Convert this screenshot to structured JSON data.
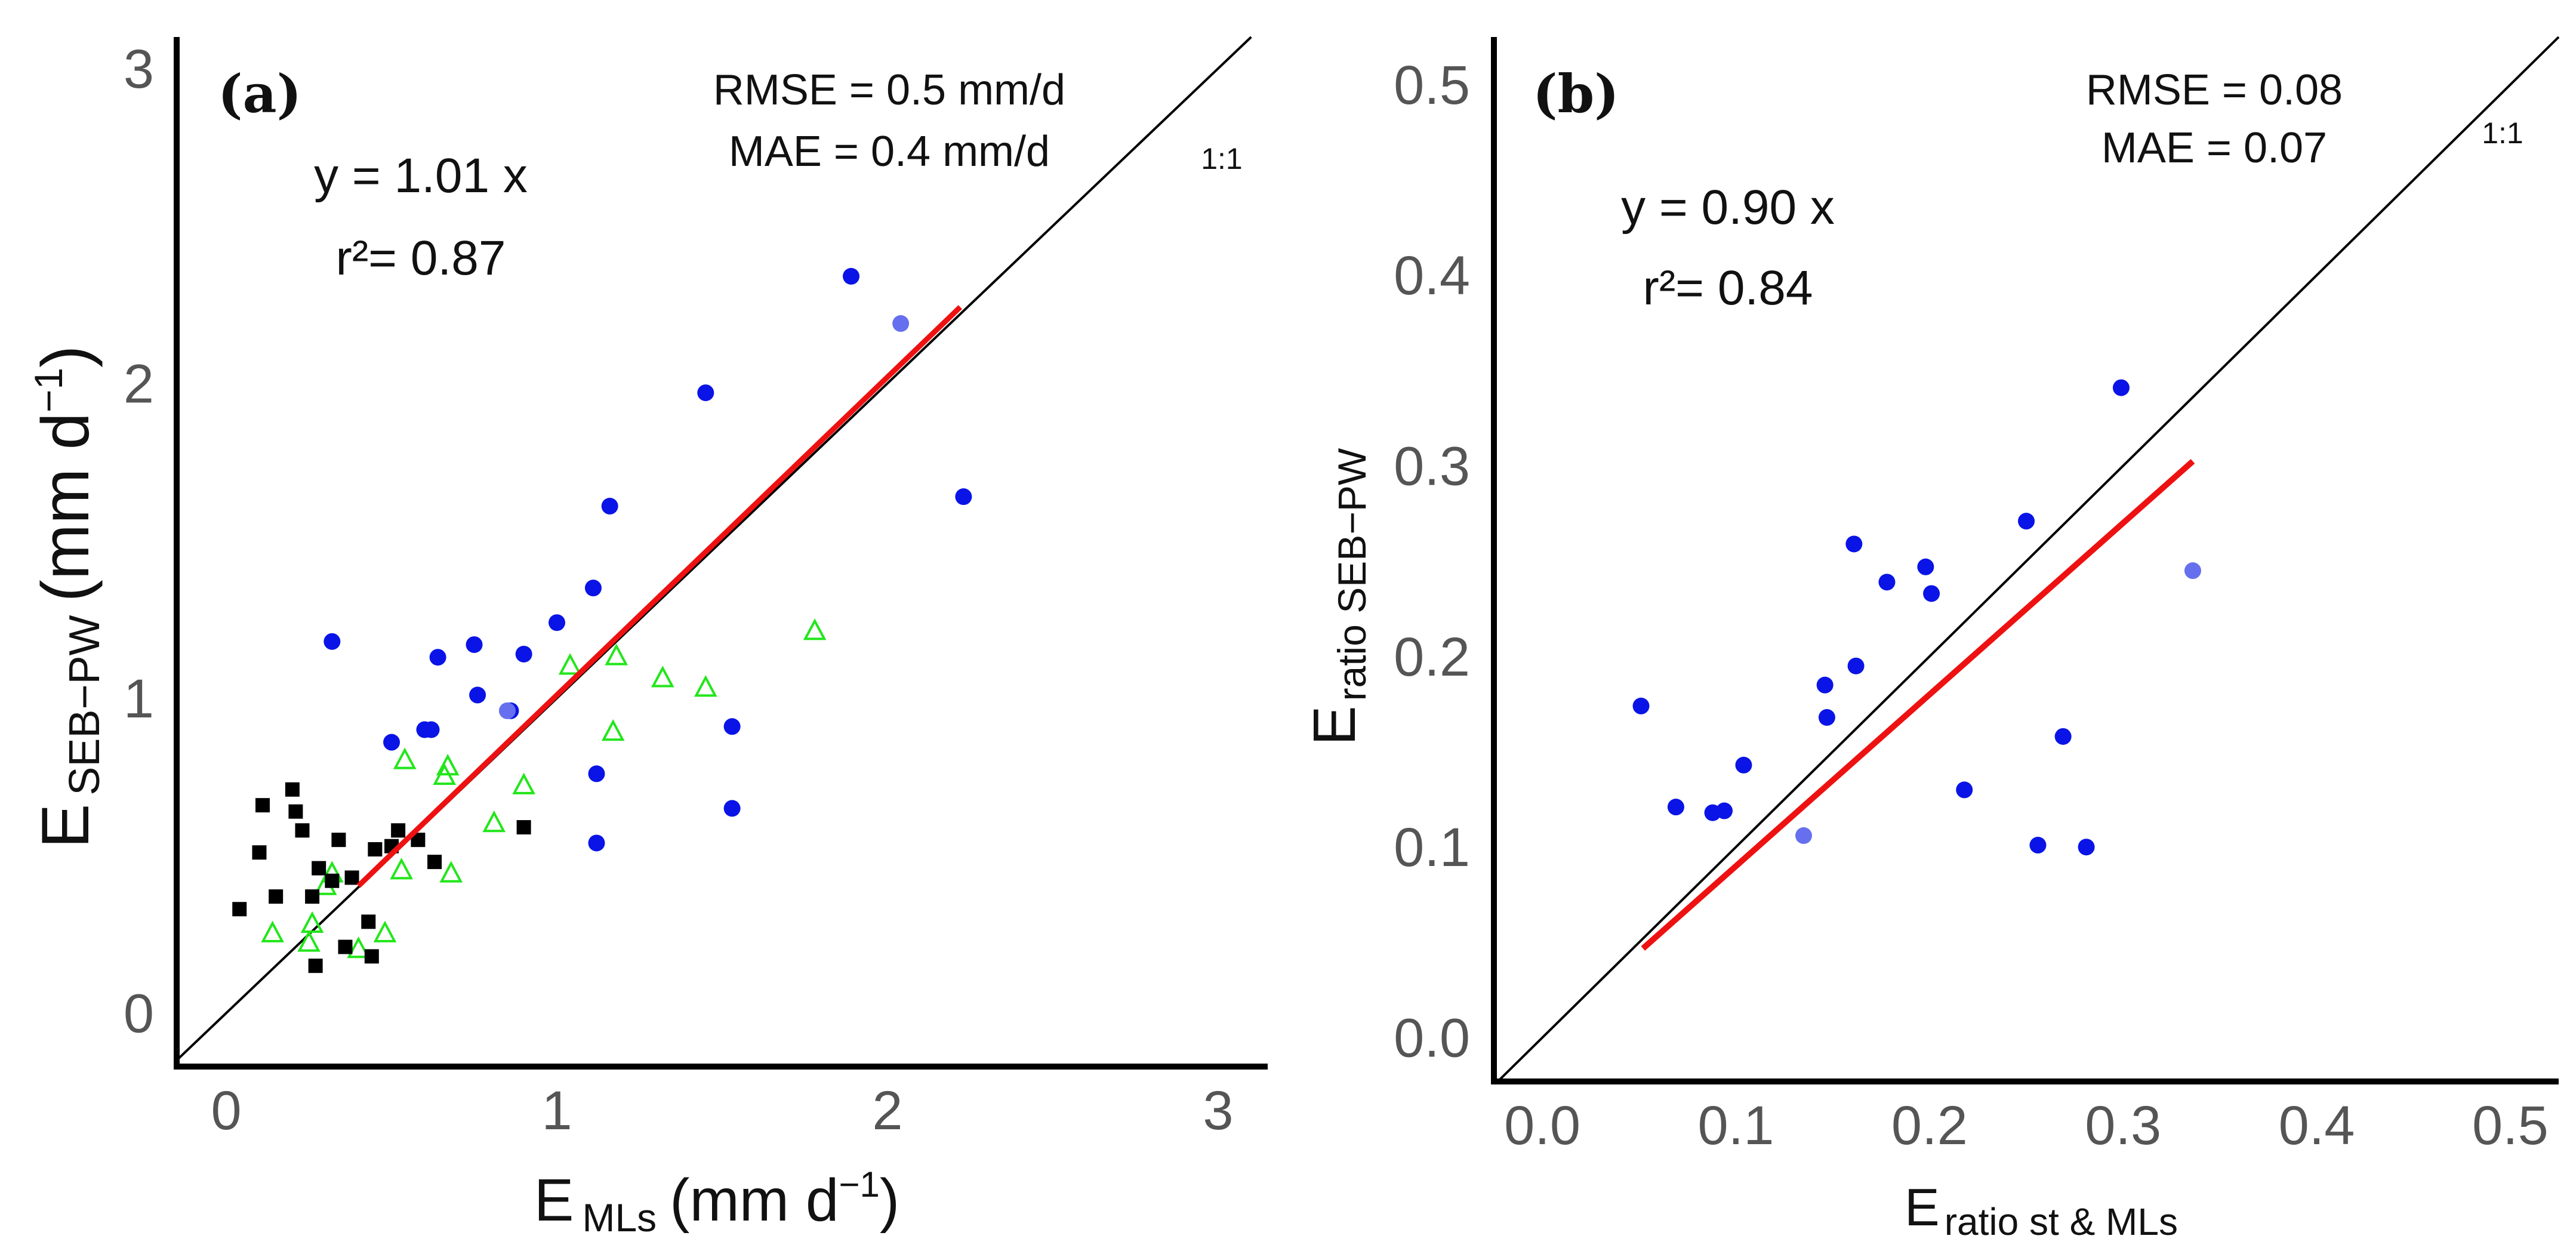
{
  "colors": {
    "blue_point": "#0a14e6",
    "blue_point_light": "#6670ee",
    "green_triangle": "#22e61a",
    "black_square": "#000000",
    "regression_line": "#ee1111",
    "one_to_one": "#000000",
    "axis": "#000000",
    "tick_text": "#555555"
  },
  "chart_data": [
    {
      "panel": "(a)",
      "type": "scatter",
      "xlim": [
        -0.15,
        3.15
      ],
      "ylim": [
        -0.17,
        3.1
      ],
      "xticks": [
        "0",
        "1",
        "2",
        "3"
      ],
      "yticks": [
        "0",
        "1",
        "2",
        "3"
      ],
      "xlabel": {
        "main": "E",
        "sub": "MLs",
        "unit": "(mm d",
        "sup": "−1",
        "close": ")"
      },
      "ylabel": {
        "main": "E",
        "sub": "SEB−PW",
        "unit": "(mm d",
        "sup": "−1",
        "close": ")"
      },
      "stats": {
        "rmse": "RMSE = 0.5 mm/d",
        "mae": "MAE = 0.4 mm/d"
      },
      "equation": "y = 1.01 x",
      "r2_label": "r²= 0.87",
      "one_to_one_label": "1:1",
      "regression": {
        "slope": 1.01,
        "x_range": [
          0.4,
          2.22
        ]
      },
      "series": [
        {
          "name": "blue-circles",
          "marker": "circle",
          "x": [
            0.32,
            0.5,
            0.6,
            0.62,
            0.64,
            0.75,
            0.76,
            0.86,
            0.9,
            1.0,
            1.11,
            1.12,
            1.12,
            1.16,
            1.45,
            1.53,
            1.53,
            1.89,
            2.23
          ],
          "y": [
            1.18,
            0.86,
            0.9,
            0.9,
            1.13,
            1.17,
            1.01,
            0.96,
            1.14,
            1.24,
            1.35,
            0.54,
            0.76,
            1.61,
            1.97,
            0.65,
            0.91,
            2.34,
            1.64
          ]
        },
        {
          "name": "blue-circles-light",
          "marker": "circle-light",
          "x": [
            0.85,
            2.04
          ],
          "y": [
            0.96,
            2.19
          ]
        },
        {
          "name": "green-triangles",
          "marker": "triangle",
          "x": [
            0.14,
            0.25,
            0.26,
            0.3,
            0.32,
            0.4,
            0.48,
            0.53,
            0.54,
            0.66,
            0.67,
            0.68,
            0.81,
            0.9,
            1.04,
            1.17,
            1.18,
            1.32,
            1.45,
            1.78
          ],
          "y": [
            0.25,
            0.22,
            0.28,
            0.4,
            0.44,
            0.2,
            0.25,
            0.45,
            0.8,
            0.75,
            0.78,
            0.44,
            0.6,
            0.72,
            1.1,
            0.89,
            1.13,
            1.06,
            1.03,
            1.21
          ],
          "open": true
        },
        {
          "name": "black-squares",
          "marker": "square",
          "x": [
            0.04,
            0.1,
            0.11,
            0.15,
            0.2,
            0.21,
            0.23,
            0.26,
            0.27,
            0.28,
            0.32,
            0.34,
            0.36,
            0.38,
            0.43,
            0.44,
            0.45,
            0.5,
            0.52,
            0.58,
            0.63,
            0.9
          ],
          "y": [
            0.33,
            0.51,
            0.66,
            0.37,
            0.71,
            0.64,
            0.58,
            0.37,
            0.15,
            0.46,
            0.42,
            0.55,
            0.21,
            0.43,
            0.29,
            0.18,
            0.52,
            0.53,
            0.58,
            0.55,
            0.48,
            0.59
          ]
        }
      ]
    },
    {
      "panel": "(b)",
      "type": "scatter",
      "xlim": [
        -0.025,
        0.525
      ],
      "ylim": [
        -0.023,
        0.525
      ],
      "xticks": [
        "0.0",
        "0.1",
        "0.2",
        "0.3",
        "0.4",
        "0.5"
      ],
      "yticks": [
        "0.0",
        "0.1",
        "0.2",
        "0.3",
        "0.4",
        "0.5"
      ],
      "xlabel": {
        "main": "E",
        "sub": "ratio st & MLs"
      },
      "ylabel": {
        "main": "E",
        "sub": "ratio SEB−PW"
      },
      "stats": {
        "rmse": "RMSE = 0.08",
        "mae": "MAE = 0.07"
      },
      "equation": "y = 0.90 x",
      "r2_label": "r²= 0.84",
      "one_to_one_label": "1:1",
      "regression": {
        "slope": 0.9,
        "x_range": [
          0.052,
          0.336
        ]
      },
      "series": [
        {
          "name": "blue-circles",
          "marker": "circle",
          "x": [
            0.051,
            0.069,
            0.088,
            0.094,
            0.104,
            0.146,
            0.147,
            0.161,
            0.162,
            0.178,
            0.198,
            0.201,
            0.218,
            0.25,
            0.256,
            0.269,
            0.281,
            0.299
          ],
          "y": [
            0.174,
            0.121,
            0.118,
            0.119,
            0.143,
            0.185,
            0.168,
            0.259,
            0.195,
            0.239,
            0.247,
            0.233,
            0.13,
            0.271,
            0.101,
            0.158,
            0.1,
            0.341
          ]
        },
        {
          "name": "blue-circles-light",
          "marker": "circle-light",
          "x": [
            0.135,
            0.336
          ],
          "y": [
            0.106,
            0.245
          ]
        }
      ]
    }
  ]
}
